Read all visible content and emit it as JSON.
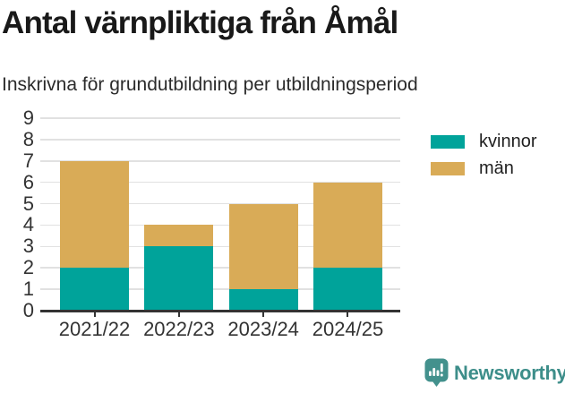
{
  "chart_data": {
    "type": "bar",
    "stacked": true,
    "title": "Antal värnpliktiga från Åmål",
    "subtitle": "Inskrivna för grundutbildning per utbildningsperiod",
    "categories": [
      "2021/22",
      "2022/23",
      "2023/24",
      "2024/25"
    ],
    "series": [
      {
        "name": "kvinnor",
        "color": "#00a39a",
        "values": [
          2,
          3,
          1,
          2
        ]
      },
      {
        "name": "män",
        "color": "#d9ab57",
        "values": [
          5,
          1,
          4,
          4
        ]
      }
    ],
    "totals": [
      7,
      4,
      5,
      6
    ],
    "xlabel": "",
    "ylabel": "",
    "ylim": [
      0,
      9
    ],
    "yticks": [
      0,
      1,
      2,
      3,
      4,
      5,
      6,
      7,
      8,
      9
    ],
    "grid": true,
    "legend_position": "right"
  },
  "footer": {
    "brand": "Newsworthy",
    "brand_color": "#3d8e8a",
    "logo_color": "#43918d",
    "logo_icon": "bar-chart-pin-icon"
  }
}
